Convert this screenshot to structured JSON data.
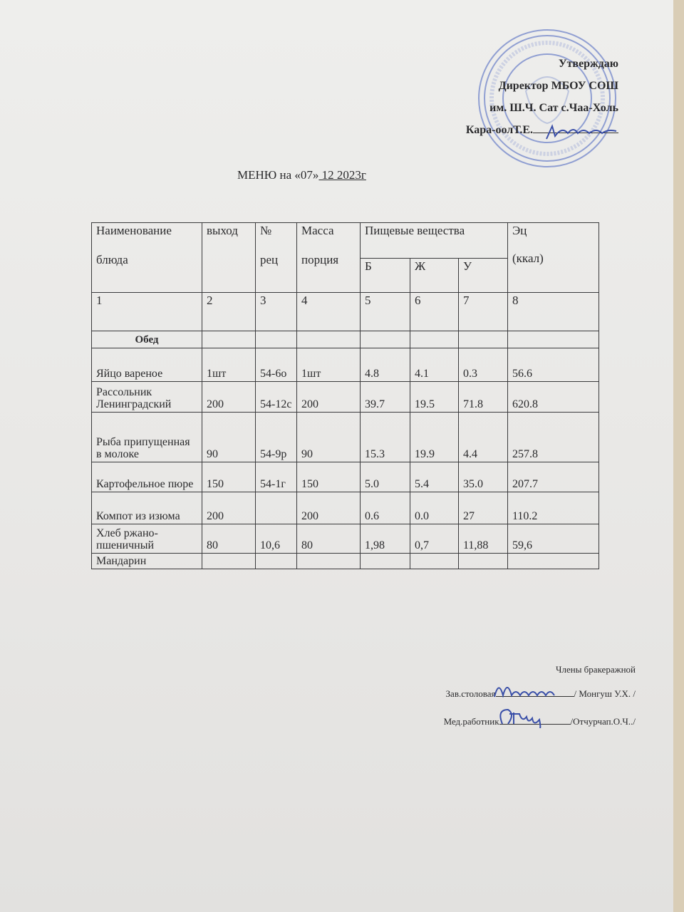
{
  "approval": {
    "line1": "Утверждаю",
    "line2": "Директор МБОУ СОШ",
    "line3": "им. Ш.Ч. Сат с.Чаа-Холь",
    "line4": "Кара-оолТ.Е."
  },
  "stamp": {
    "text": "МУНИЦИПАЛЬНОЕ БЮДЖЕТНОЕ ОБЩЕОБРАЗОВАТЕЛЬНОЕ УЧРЕЖДЕНИЕ «СРЕДНЯЯ ОБЩЕОБРАЗОВАТЕЛЬНАЯ ШКОЛА им. Ш.Ч.САТ с.ЧАА-ХОЛЬ» ЧАА-ХОЛЬСКОГО КОЖУУНА РЕСПУБЛИКИ ТЫВА",
    "color": "#5a6fc0"
  },
  "title": {
    "prefix": "МЕНЮ на  «07»",
    "date": " 12   2023г"
  },
  "table": {
    "headers": {
      "name": "Наименование",
      "name2": "блюда",
      "output": "выход",
      "rec": "№",
      "rec2": "рец",
      "mass": "Масса",
      "mass2": "порция",
      "nutrients": "Пищевые вещества",
      "b": "Б",
      "zh": "Ж",
      "u": "У",
      "energy": "Эц",
      "energy2": "(ккал)"
    },
    "col_numbers": [
      "1",
      "2",
      "3",
      "4",
      "5",
      "6",
      "7",
      "8"
    ],
    "section": "Обед",
    "rows": [
      {
        "name": "Яйцо  вареное",
        "output": "1шт",
        "rec": "54-6о",
        "mass": "1шт",
        "b": "4.8",
        "zh": "4.1",
        "u": "0.3",
        "e": "56.6"
      },
      {
        "name": "Рассольник Ленинградский",
        "output": "200",
        "rec": "54-12с",
        "mass": "200",
        "b": "39.7",
        "zh": "19.5",
        "u": "71.8",
        "e": "620.8"
      },
      {
        "name": "Рыба припущенная  в молоке",
        "output": "90",
        "rec": "54-9р",
        "mass": "90",
        "b": "15.3",
        "zh": "19.9",
        "u": "4.4",
        "e": "257.8"
      },
      {
        "name": "Картофельное пюре",
        "output": "150",
        "rec": "54-1г",
        "mass": "150",
        "b": "5.0",
        "zh": "5.4",
        "u": "35.0",
        "e": "207.7"
      },
      {
        "name": "Компот  из изюма",
        "output": "200",
        "rec": "",
        "mass": "200",
        "b": "0.6",
        "zh": "0.0",
        "u": "27",
        "e": "110.2"
      },
      {
        "name": "Хлеб ржано-пшеничный",
        "output": "80",
        "rec": "10,6",
        "mass": "80",
        "b": "1,98",
        "zh": "0,7",
        "u": "11,88",
        "e": "59,6"
      },
      {
        "name": "Мандарин",
        "output": "",
        "rec": "",
        "mass": "",
        "b": "",
        "zh": "",
        "u": "",
        "e": ""
      }
    ]
  },
  "commission": {
    "title": "Члены бракеражной",
    "role1": "Зав.столовая",
    "name1": "/ Монгуш У.Х. /",
    "role2": "Мед.работник",
    "name2": "/Отчурчап.О.Ч../"
  },
  "signature_colors": {
    "ink": "#3a4fa8"
  }
}
